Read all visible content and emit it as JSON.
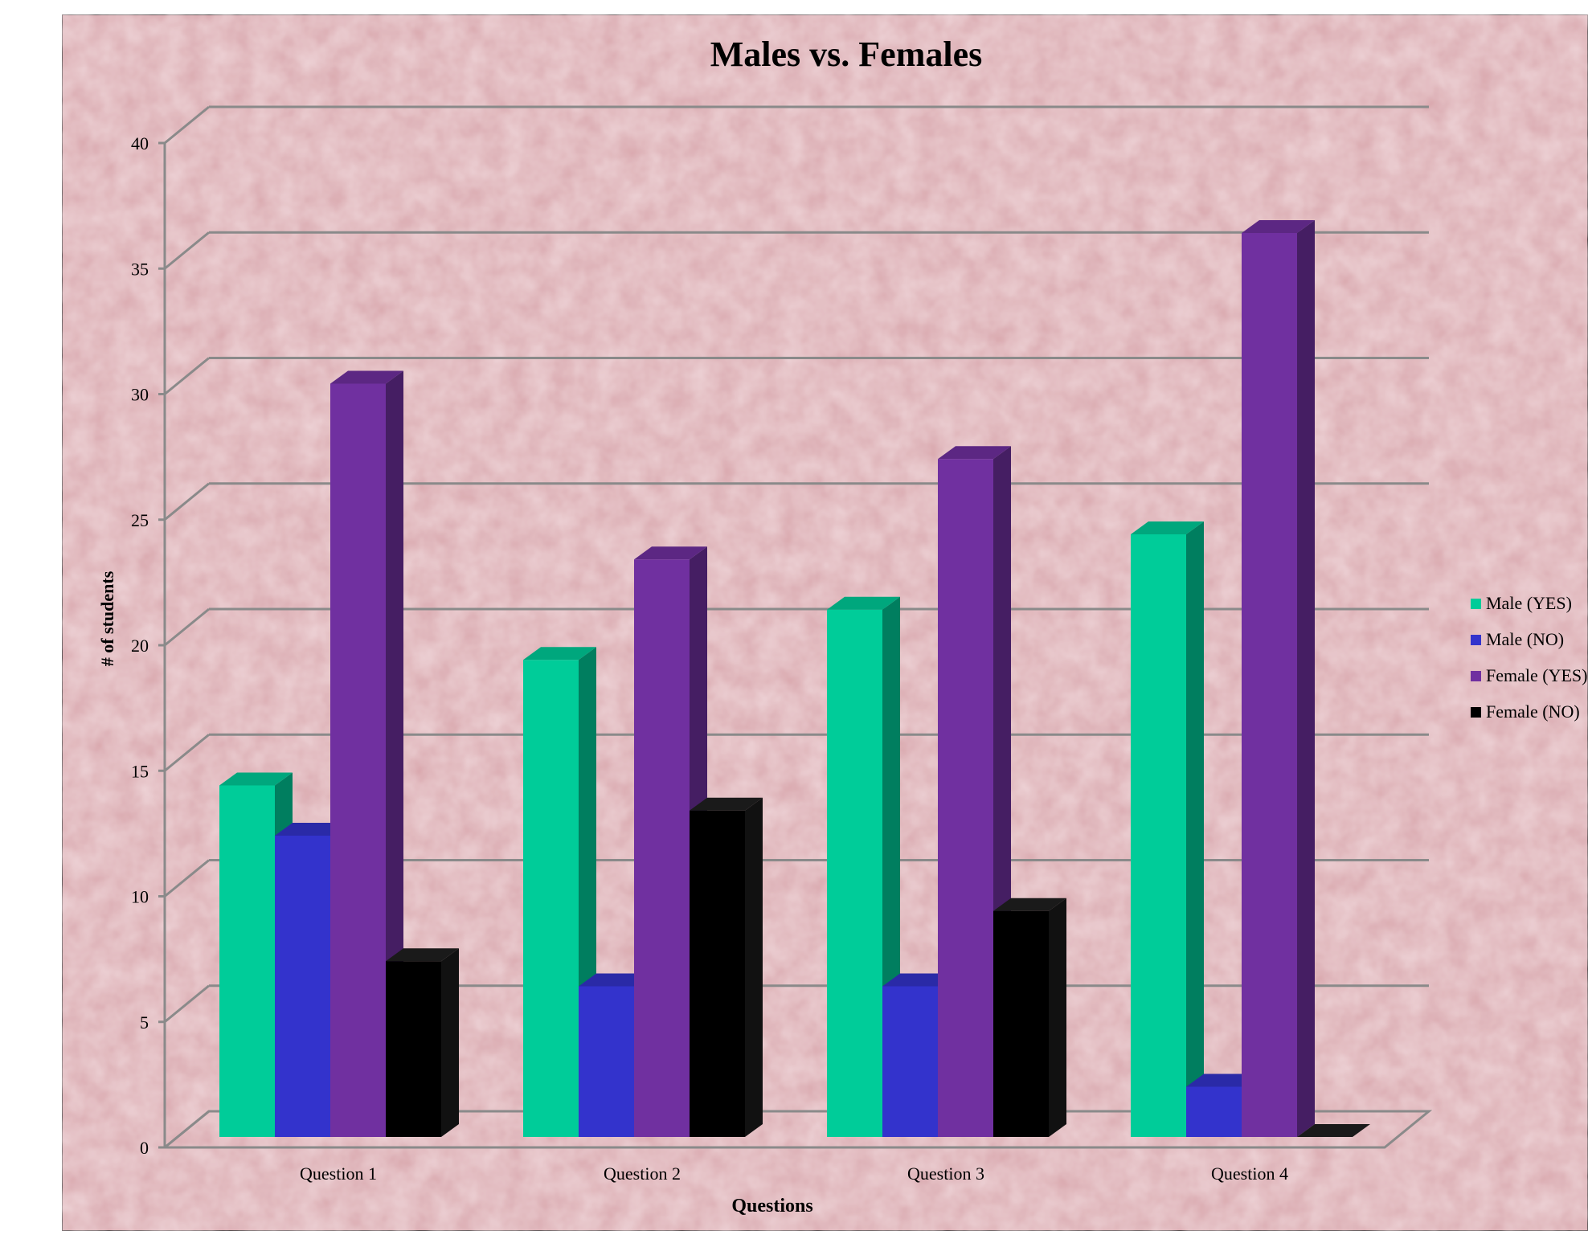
{
  "chart_data": {
    "type": "bar",
    "title": "Males vs. Females",
    "xlabel": "Questions",
    "ylabel": "# of students",
    "categories": [
      "Question 1",
      "Question 2",
      "Question 3",
      "Question 4"
    ],
    "series": [
      {
        "name": "Male (YES)",
        "values": [
          14,
          19,
          21,
          24
        ],
        "color": "#00cc99"
      },
      {
        "name": "Male (NO)",
        "values": [
          12,
          6,
          6,
          2
        ],
        "color": "#3333cc"
      },
      {
        "name": "Female (YES)",
        "values": [
          30,
          23,
          27,
          36
        ],
        "color": "#7030a0"
      },
      {
        "name": "Female (NO)",
        "values": [
          7,
          13,
          9,
          0
        ],
        "color": "#000000"
      }
    ],
    "ylim": [
      0,
      40
    ],
    "yticks": [
      "0",
      "5",
      "10",
      "15",
      "20",
      "25",
      "30",
      "35",
      "40"
    ],
    "grid": true,
    "legend_position": "right",
    "background_color": "#d9a7ad"
  }
}
